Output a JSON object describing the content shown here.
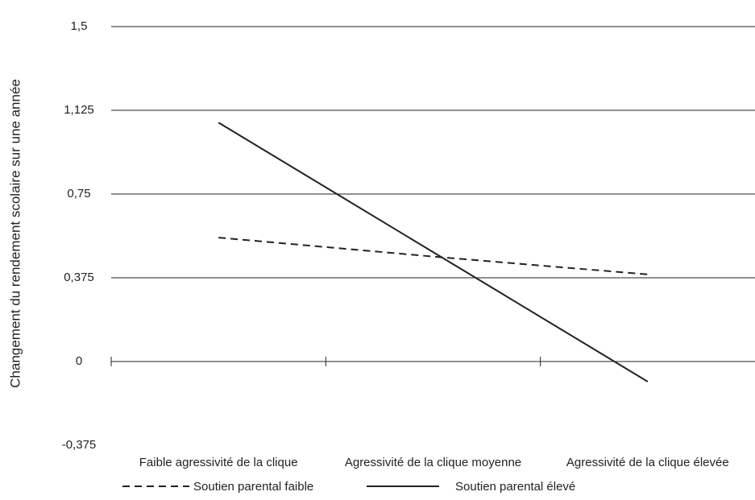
{
  "chart_data": {
    "type": "line",
    "y_label": "Changement du rendement scolaire sur une année",
    "categories": [
      "Faible agressivité de la clique",
      "Agressivité de la clique moyenne",
      "Agressivité de la clique élevée"
    ],
    "series": [
      {
        "name": "Soutien parental faible",
        "color": "#222222",
        "dash": true,
        "values": [
          0.555,
          0.47,
          0.39
        ]
      },
      {
        "name": "Soutien parental élevé",
        "color": "#222222",
        "dash": false,
        "values": [
          1.07,
          0.49,
          -0.09
        ]
      }
    ],
    "ylim": [
      -0.375,
      1.5
    ],
    "yticks": [
      {
        "value": -0.375,
        "label": "-0,375"
      },
      0,
      {
        "value": 0.375,
        "label": "0,375"
      },
      {
        "value": 0.75,
        "label": "0,75"
      },
      {
        "value": 1.125,
        "label": "1,125"
      },
      {
        "value": 1.5,
        "label": "1,5"
      }
    ],
    "grid": true
  }
}
